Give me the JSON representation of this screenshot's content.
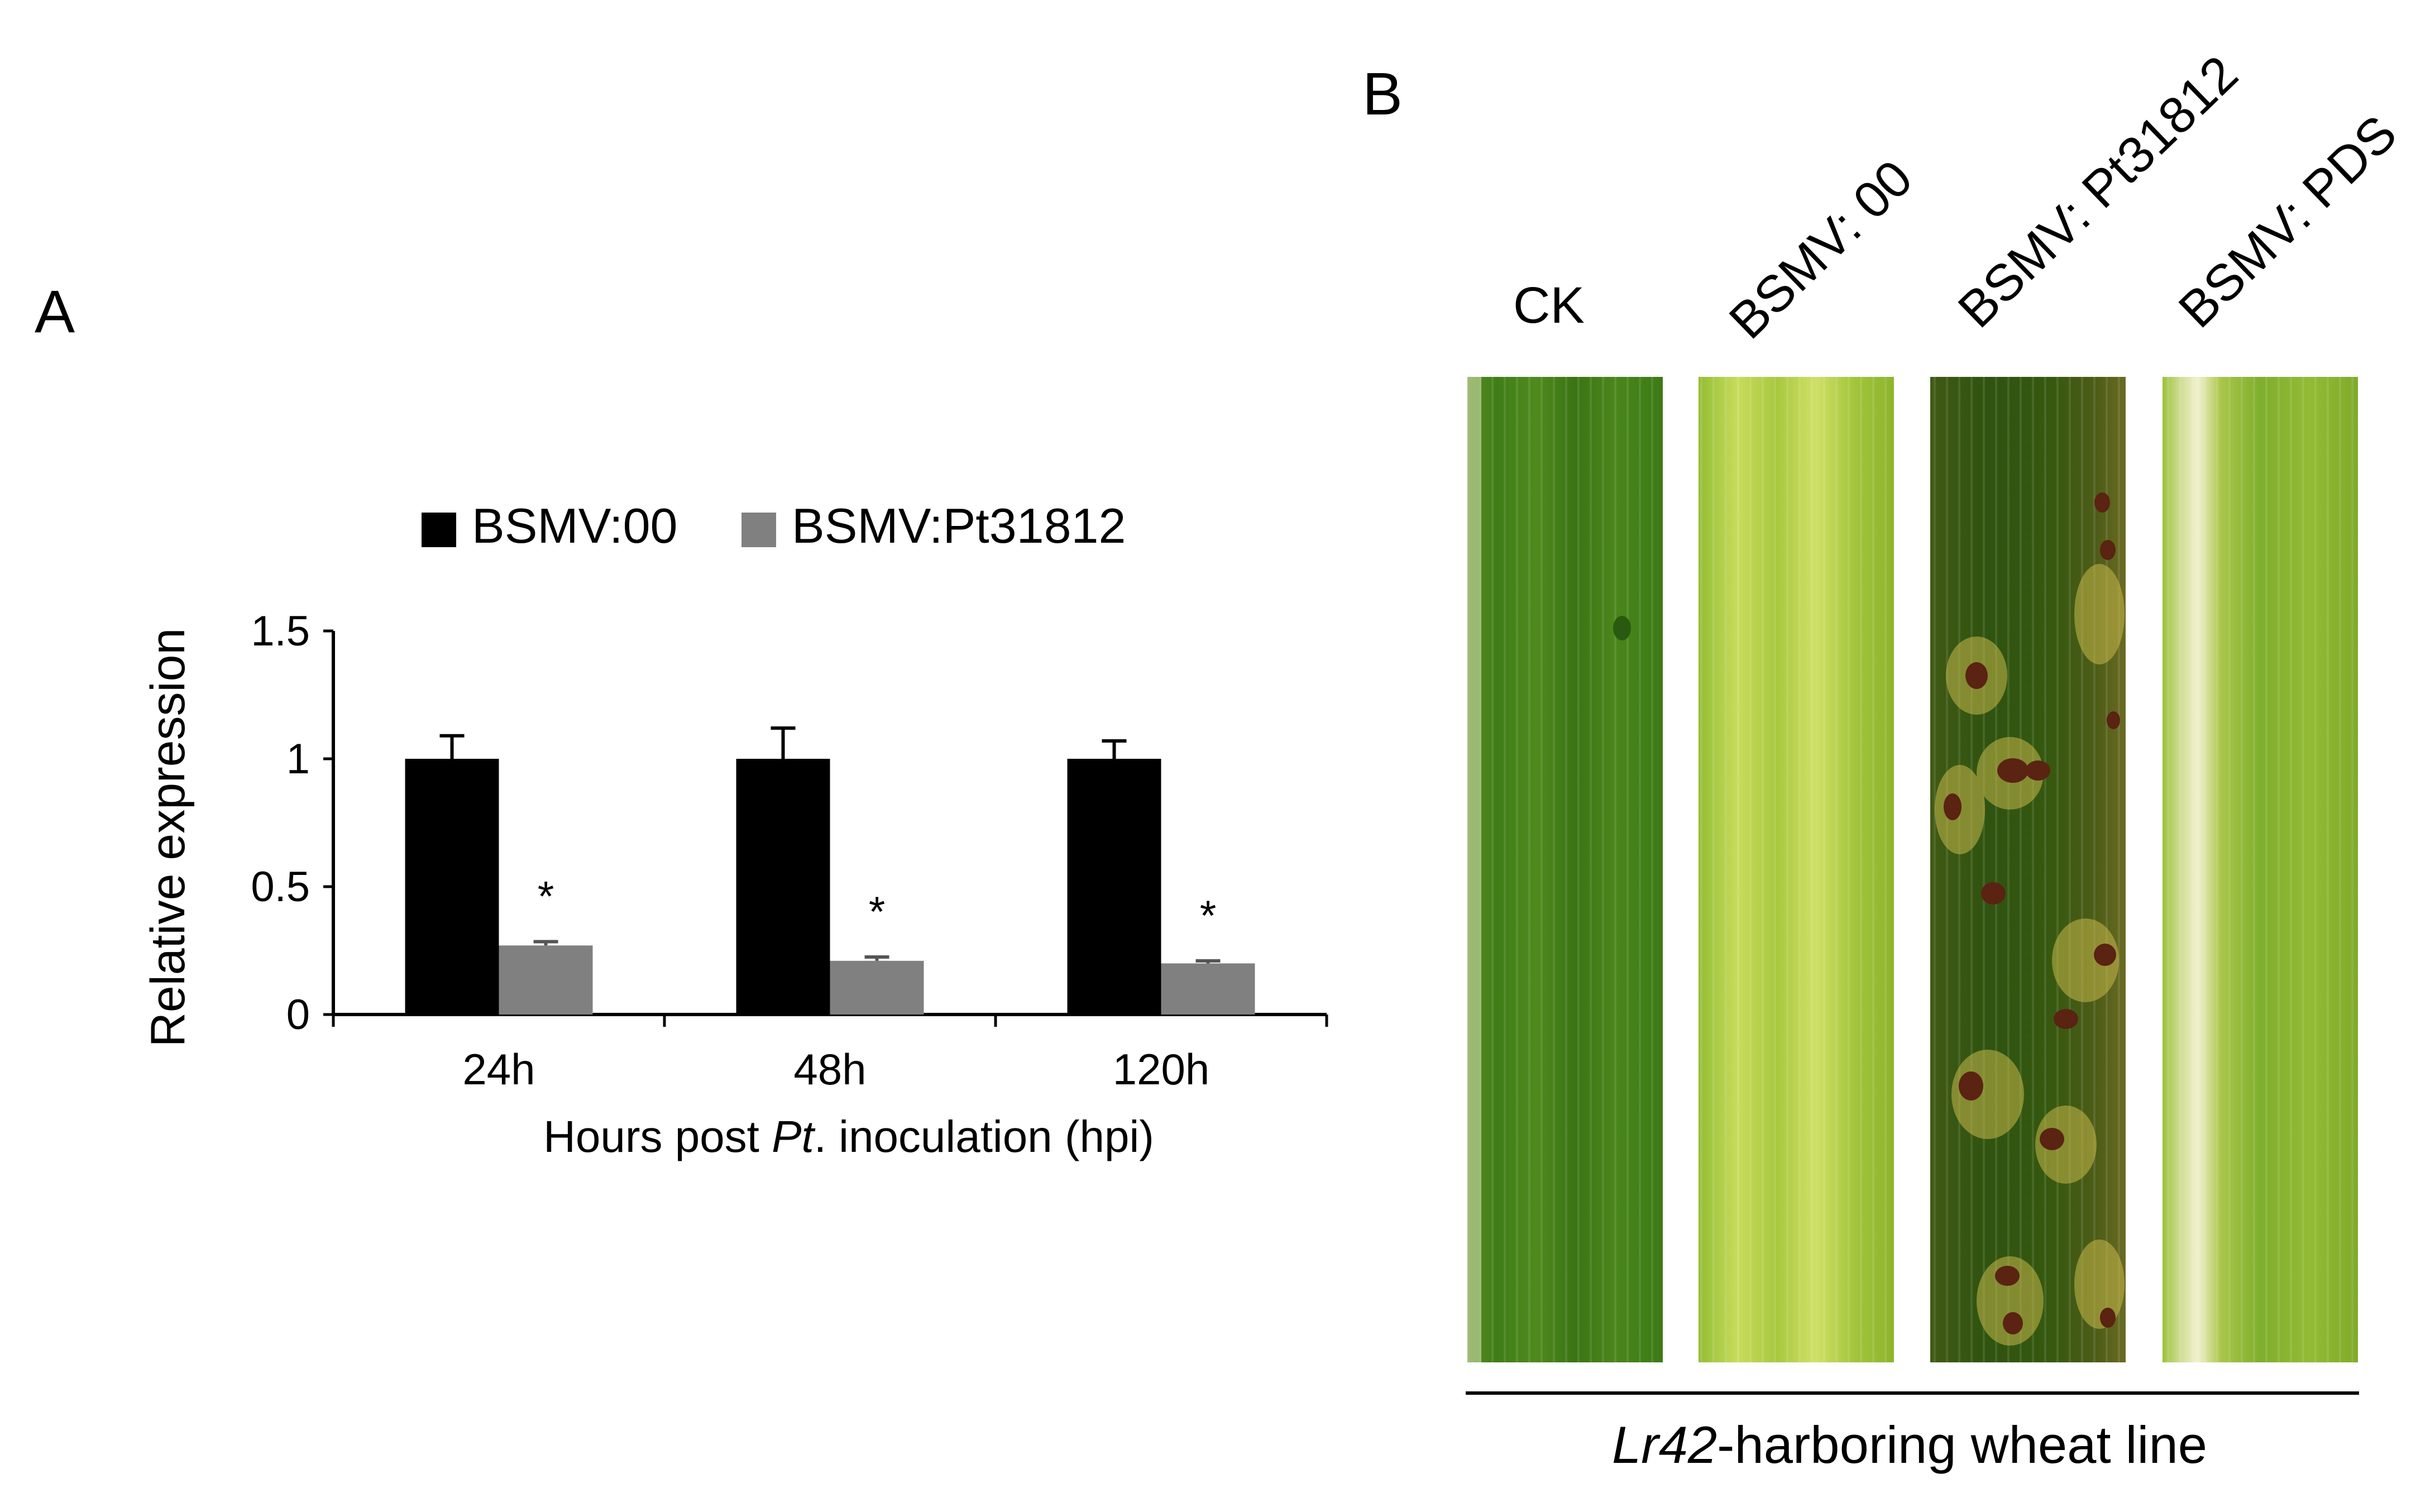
{
  "panel_a": {
    "letter": "A",
    "chart_data": {
      "type": "bar",
      "categories": [
        "24h",
        "48h",
        "120h"
      ],
      "series": [
        {
          "name": "BSMV:00",
          "values": [
            1.0,
            1.0,
            1.0
          ],
          "errors": [
            0.09,
            0.12,
            0.07
          ],
          "color": "#000000"
        },
        {
          "name": "BSMV:Pt31812",
          "values": [
            0.27,
            0.21,
            0.2
          ],
          "errors": [
            0.015,
            0.015,
            0.01
          ],
          "color": "#808080"
        }
      ],
      "ylabel": "Relative expression",
      "xlabel_prefix": "Hours post ",
      "xlabel_italic": "Pt",
      "xlabel_suffix": ". inoculation (hpi)",
      "yticks": [
        "0",
        "0.5",
        "1",
        "1.5"
      ],
      "ylim": [
        0,
        1.5
      ],
      "significance": [
        "*",
        "*",
        "*"
      ],
      "legend_position": "top"
    }
  },
  "panel_b": {
    "letter": "B",
    "leaves": [
      {
        "label": "CK",
        "description": "healthy green leaf"
      },
      {
        "label": "BSMV: 00",
        "description": "light yellow-green leaf"
      },
      {
        "label": "BSMV: Pt31812",
        "description": "dark green leaf with brown rust pustules and chlorotic halos"
      },
      {
        "label": "BSMV: PDS",
        "description": "photobleached leaf with white streak"
      }
    ],
    "caption_italic": "Lr42",
    "caption_rest": "-harboring wheat line"
  }
}
